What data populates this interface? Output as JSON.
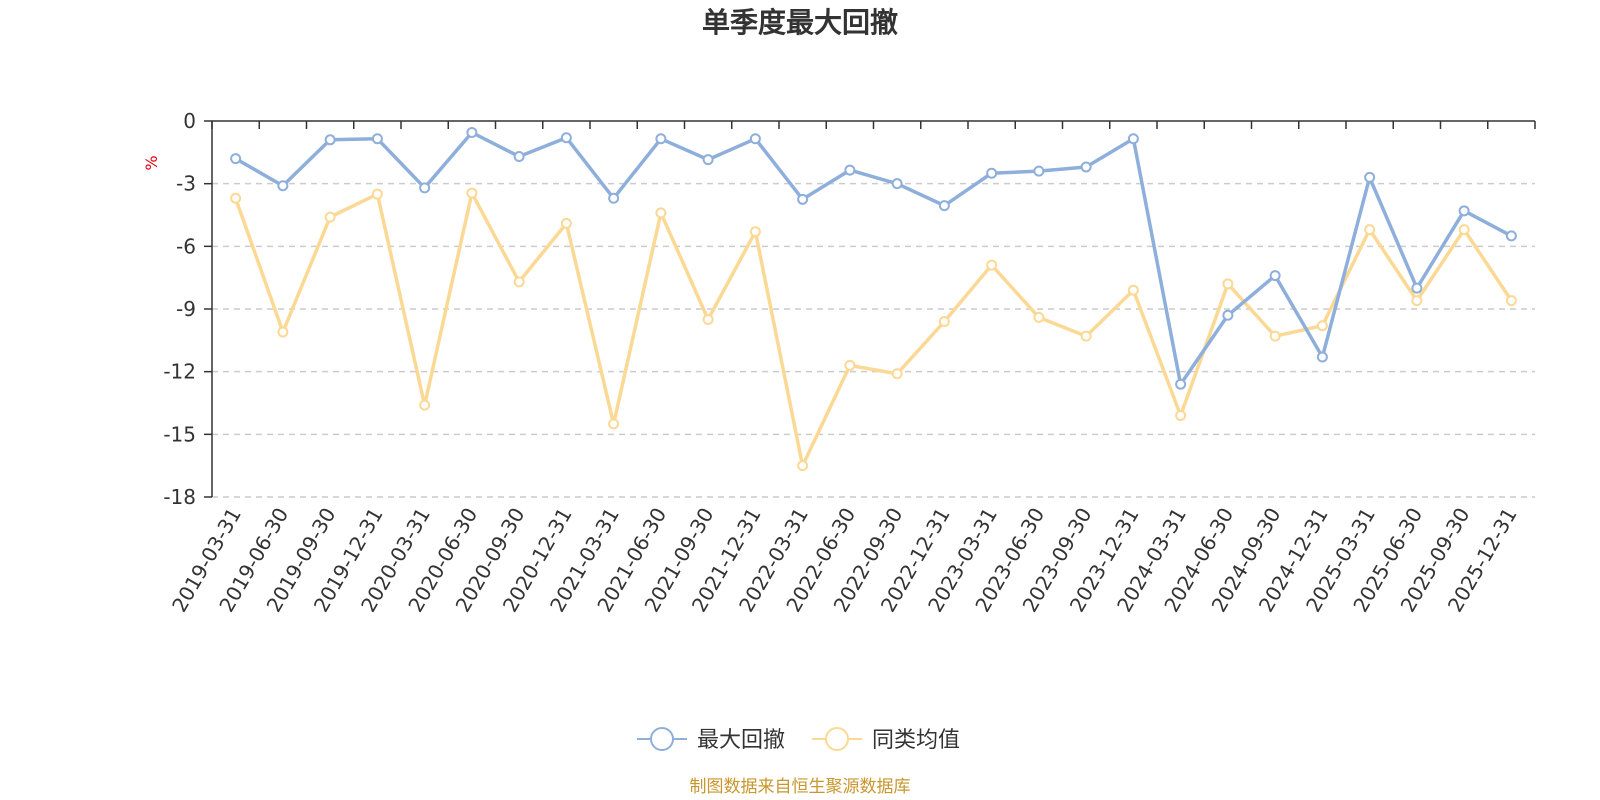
{
  "chart_data": {
    "type": "line",
    "title": "单季度最大回撤",
    "ylabel": "%",
    "ylim": [
      -18,
      0
    ],
    "yticks": [
      0,
      -3,
      -6,
      -9,
      -12,
      -15,
      -18
    ],
    "grid": true,
    "legend_position": "bottom",
    "categories": [
      "2019-03-31",
      "2019-06-30",
      "2019-09-30",
      "2019-12-31",
      "2020-03-31",
      "2020-06-30",
      "2020-09-30",
      "2020-12-31",
      "2021-03-31",
      "2021-06-30",
      "2021-09-30",
      "2021-12-31",
      "2022-03-31",
      "2022-06-30",
      "2022-09-30",
      "2022-12-31",
      "2023-03-31",
      "2023-06-30",
      "2023-09-30",
      "2023-12-31",
      "2024-03-31",
      "2024-06-30",
      "2024-09-30",
      "2024-12-31",
      "2025-03-31",
      "2025-06-30",
      "2025-09-30",
      "2025-12-31"
    ],
    "series": [
      {
        "name": "最大回撤",
        "color": "#8eaedb",
        "values": [
          -1.8,
          -3.1,
          -0.9,
          -0.85,
          -3.2,
          -0.55,
          -1.7,
          -0.8,
          -3.7,
          -0.85,
          -1.85,
          -0.85,
          -3.75,
          -2.35,
          -3.0,
          -4.05,
          -2.5,
          -2.4,
          -2.2,
          -0.85,
          -12.6,
          -9.3,
          -7.4,
          -11.3,
          -2.7,
          -8.0,
          -4.3,
          -5.5
        ]
      },
      {
        "name": "同类均值",
        "color": "#fbd995",
        "values": [
          -3.7,
          -10.1,
          -4.6,
          -3.5,
          -13.6,
          -3.45,
          -7.7,
          -4.9,
          -14.5,
          -4.4,
          -9.5,
          -5.3,
          -16.5,
          -11.7,
          -12.1,
          -9.6,
          -6.9,
          -9.4,
          -10.3,
          -8.1,
          -14.1,
          -7.8,
          -10.3,
          -9.8,
          -5.2,
          -8.6,
          -5.2,
          -8.6
        ]
      }
    ]
  },
  "source_text": "制图数据来自恒生聚源数据库",
  "colors": {
    "axis": "#333333",
    "grid": "#cccccc",
    "ylabel": "#e60012",
    "source": "#c8962d"
  }
}
